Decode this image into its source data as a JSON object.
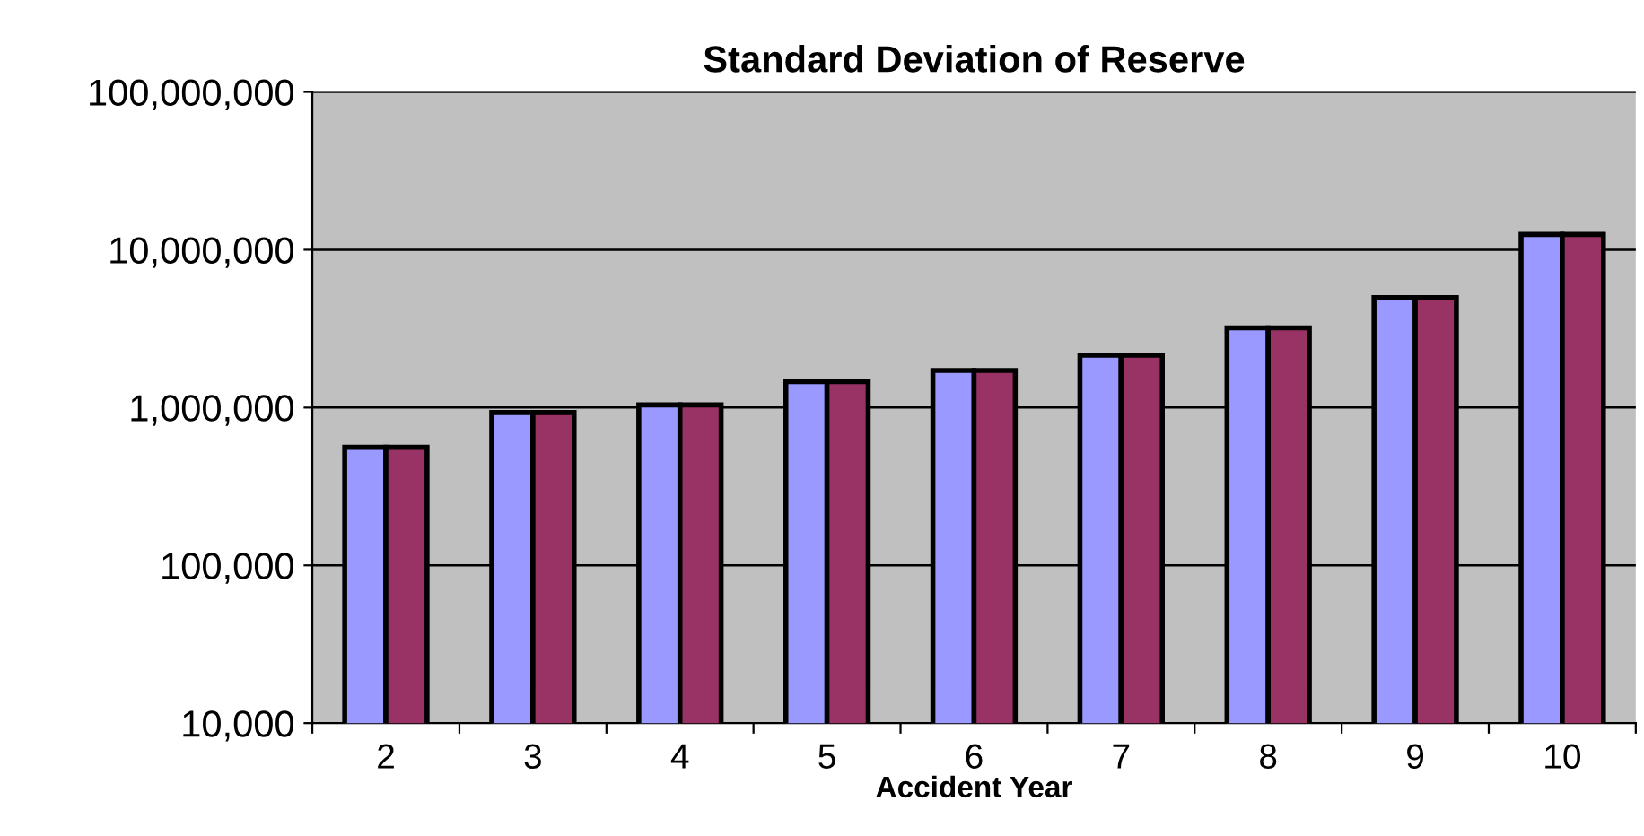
{
  "chart_data": {
    "type": "bar",
    "title": "Standard Deviation of Reserve",
    "xlabel": "Accident Year",
    "categories": [
      "2",
      "3",
      "4",
      "5",
      "6",
      "7",
      "8",
      "9",
      "10"
    ],
    "series": [
      {
        "color": "#9999ff",
        "values": [
          560000,
          930000,
          1040000,
          1460000,
          1720000,
          2150000,
          3200000,
          4980000,
          12500000
        ]
      },
      {
        "color": "#993366",
        "values": [
          560000,
          930000,
          1040000,
          1460000,
          1720000,
          2150000,
          3200000,
          4980000,
          12500000
        ]
      }
    ],
    "log": true,
    "ylim": [
      10000,
      100000000
    ],
    "yticks": [
      {
        "value": 10000,
        "label": "10,000"
      },
      {
        "value": 100000,
        "label": "100,000"
      },
      {
        "value": 1000000,
        "label": "1,000,000"
      },
      {
        "value": 10000000,
        "label": "10,000,000"
      },
      {
        "value": 100000000,
        "label": "100,000,000"
      }
    ],
    "grid": "y"
  }
}
